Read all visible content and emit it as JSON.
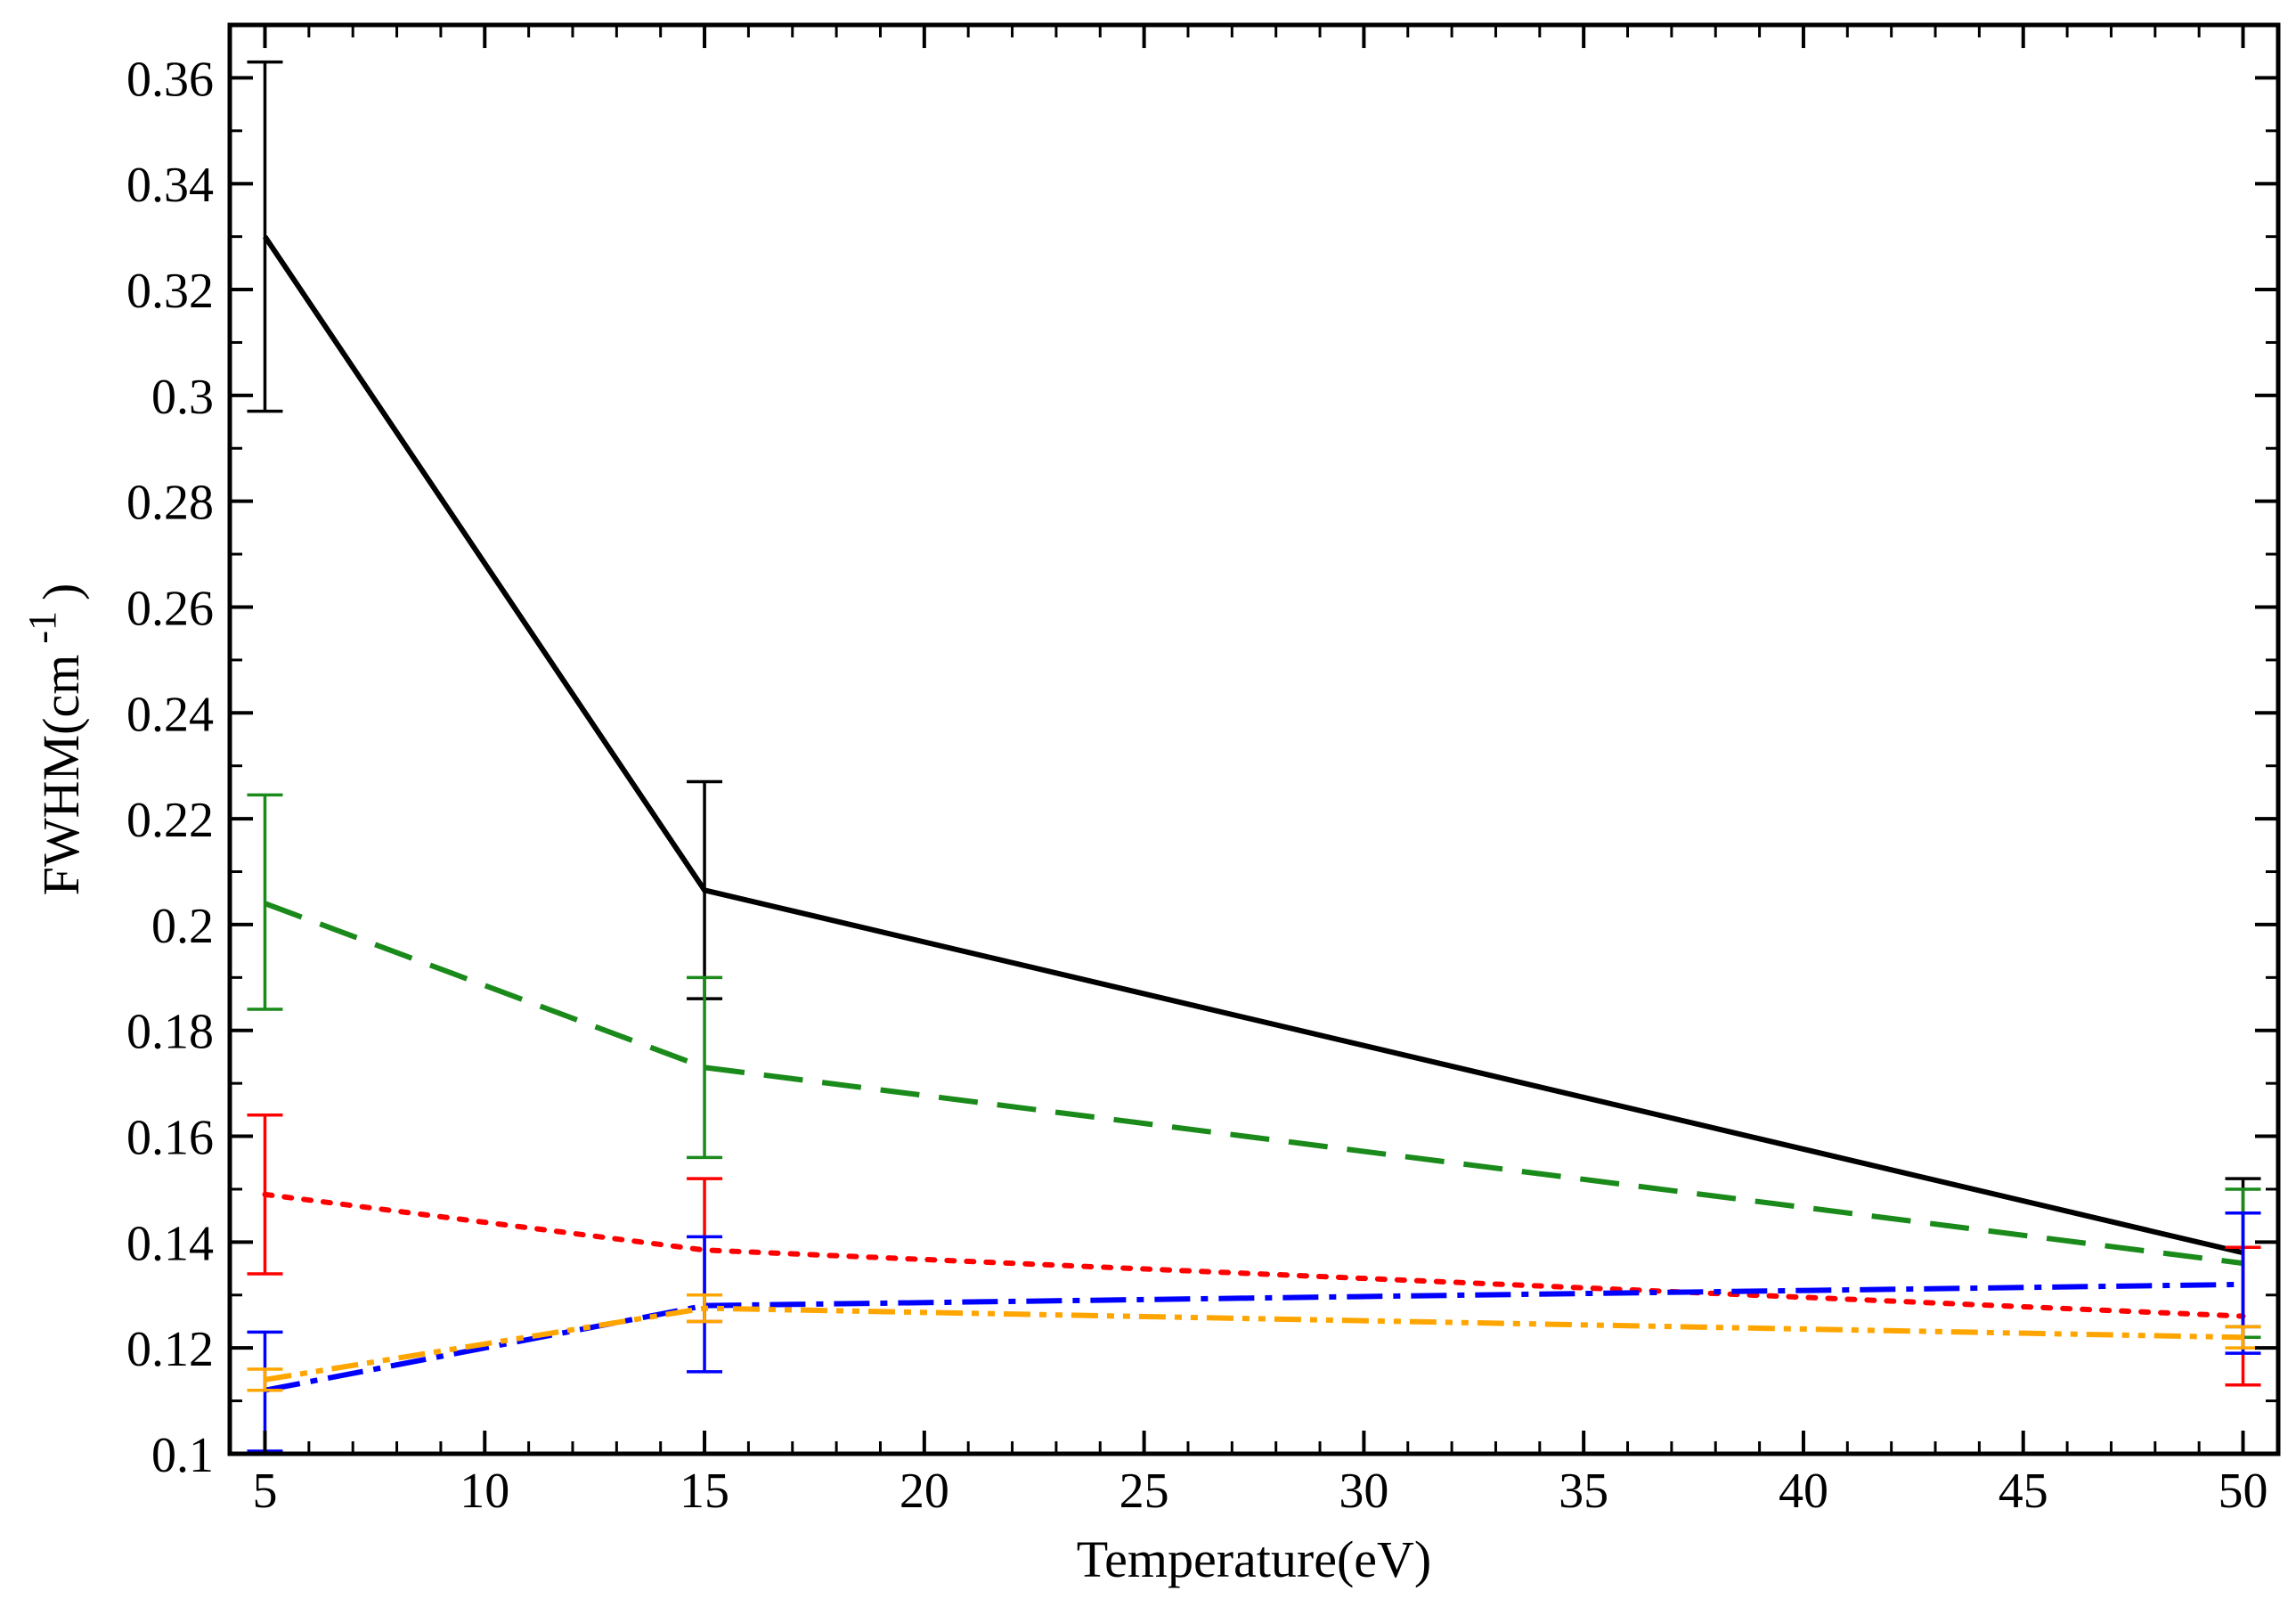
{
  "chart_data": {
    "type": "line",
    "xlabel": "Temperature(eV)",
    "ylabel": {
      "prefix": "FWHM(cm",
      "superscript": "-1",
      "suffix": ")"
    },
    "xlim": [
      4.2,
      50.8
    ],
    "ylim": [
      0.1,
      0.37
    ],
    "x_ticks": [
      5,
      10,
      15,
      20,
      25,
      30,
      35,
      40,
      45,
      50
    ],
    "x_tick_labels": [
      "5",
      "10",
      "15",
      "20",
      "25",
      "30",
      "35",
      "40",
      "45",
      "50"
    ],
    "x_minor_step": 1,
    "y_ticks": [
      0.1,
      0.12,
      0.14,
      0.16,
      0.18,
      0.2,
      0.22,
      0.24,
      0.26,
      0.28,
      0.3,
      0.32,
      0.34,
      0.36
    ],
    "y_tick_labels": [
      "0.1",
      "0.12",
      "0.14",
      "0.16",
      "0.18",
      "0.2",
      "0.22",
      "0.24",
      "0.26",
      "0.28",
      "0.3",
      "0.32",
      "0.34",
      "0.36"
    ],
    "y_minor_step": 0.01,
    "grid": false,
    "legend": "none",
    "x": [
      5,
      15,
      50
    ],
    "series": [
      {
        "color": "#000000",
        "dash": "solid",
        "values": [
          0.33,
          0.2065,
          0.138
        ],
        "err_low": [
          0.297,
          0.186,
          0.124
        ],
        "err_high": [
          0.363,
          0.227,
          0.152
        ]
      },
      {
        "color": "#1a8a1a",
        "dash": "dashed",
        "values": [
          0.204,
          0.173,
          0.136
        ],
        "err_low": [
          0.184,
          0.156,
          0.122
        ],
        "err_high": [
          0.2245,
          0.19,
          0.15
        ]
      },
      {
        "color": "#ff0000",
        "dash": "dotted",
        "values": [
          0.149,
          0.1385,
          0.126
        ],
        "err_low": [
          0.134,
          0.125,
          0.113
        ],
        "err_high": [
          0.164,
          0.152,
          0.139
        ]
      },
      {
        "color": "#0000ff",
        "dash": "dash-dot",
        "values": [
          0.112,
          0.128,
          0.132
        ],
        "err_low": [
          0.1005,
          0.1155,
          0.119
        ],
        "err_high": [
          0.123,
          0.141,
          0.1455
        ]
      },
      {
        "color": "#ffa500",
        "dash": "dash-dot-dot",
        "values": [
          0.114,
          0.1275,
          0.122
        ],
        "err_low": [
          0.112,
          0.125,
          0.12
        ],
        "err_high": [
          0.116,
          0.13,
          0.124
        ]
      }
    ]
  }
}
